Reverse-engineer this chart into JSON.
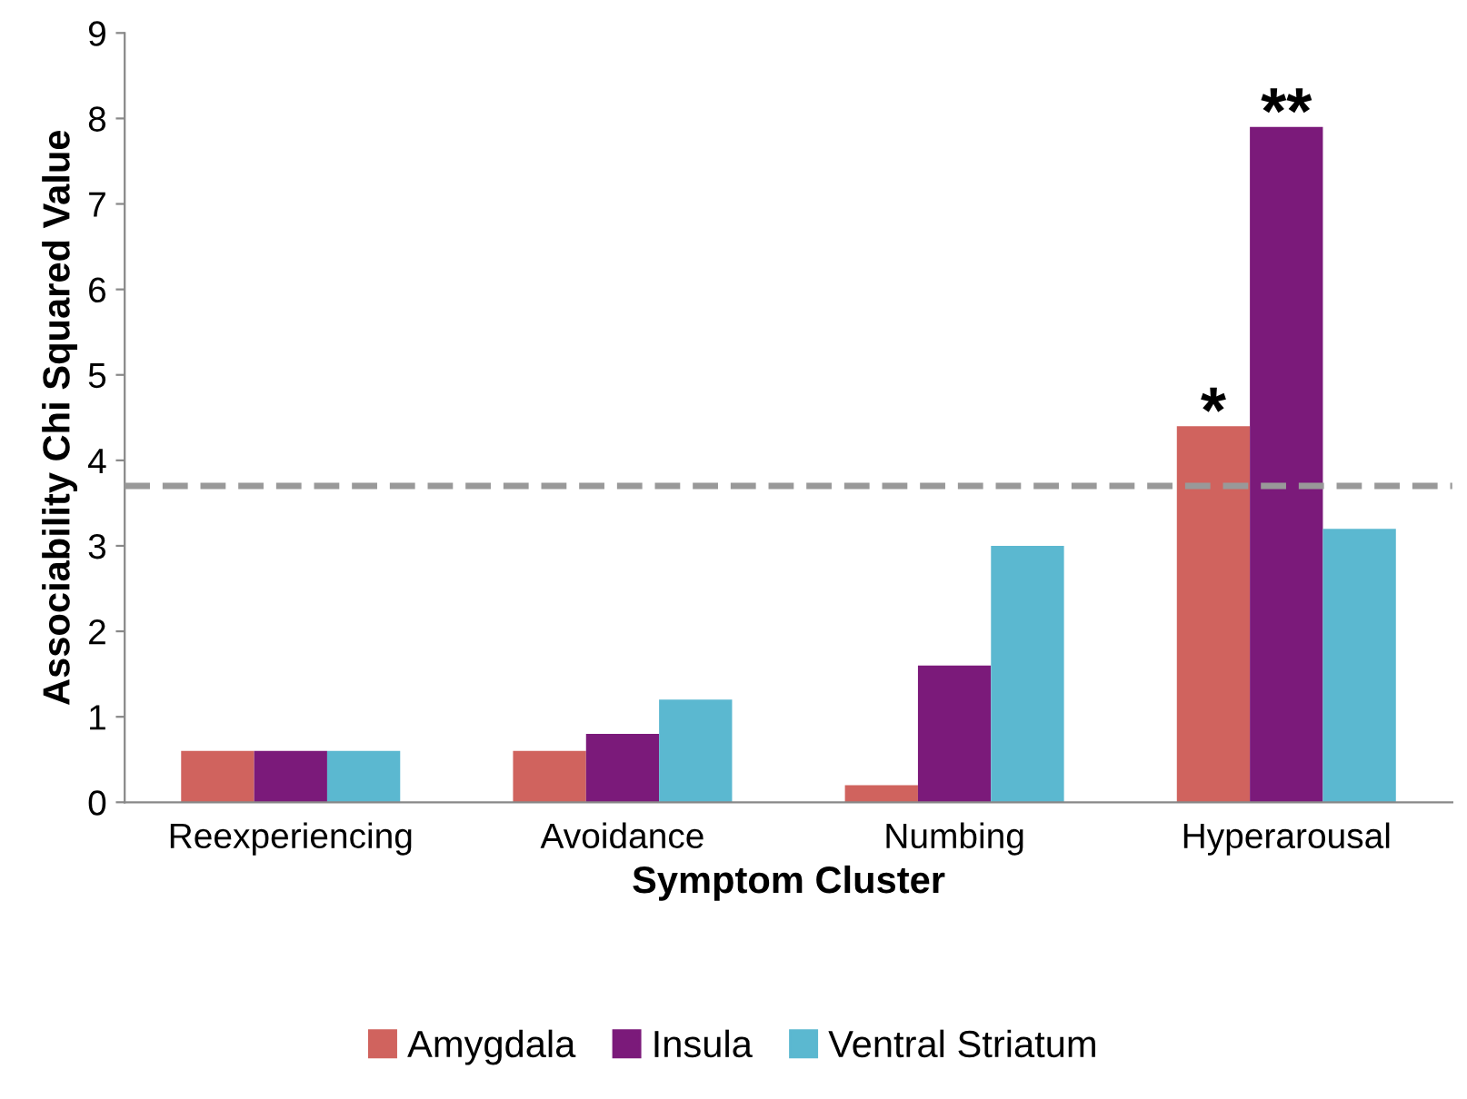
{
  "chart_data": {
    "type": "bar",
    "xlabel": "Symptom Cluster",
    "ylabel": "Associability Chi Squared Value",
    "categories": [
      "Reexperiencing",
      "Avoidance",
      "Numbing",
      "Hyperarousal"
    ],
    "series": [
      {
        "name": "Amygdala",
        "color": "#d0635e",
        "values": [
          0.6,
          0.6,
          0.2,
          4.4
        ],
        "value_labels": [
          null,
          null,
          null,
          "*"
        ]
      },
      {
        "name": "Insula",
        "color": "#7b1a7a",
        "values": [
          0.6,
          0.8,
          1.6,
          7.9
        ],
        "value_labels": [
          null,
          null,
          null,
          "**"
        ]
      },
      {
        "name": "Ventral Striatum",
        "color": "#5bb8d0",
        "values": [
          0.6,
          1.2,
          3.0,
          3.2
        ]
      }
    ],
    "ylim": [
      0,
      9
    ],
    "yticks": [
      0,
      1,
      2,
      3,
      4,
      5,
      6,
      7,
      8,
      9
    ],
    "ref_lines": [
      {
        "axis": "y",
        "value": 3.7,
        "label": null,
        "color": "#999999",
        "line_style": "dashed"
      }
    ],
    "grid": false,
    "legend": "bottom"
  }
}
